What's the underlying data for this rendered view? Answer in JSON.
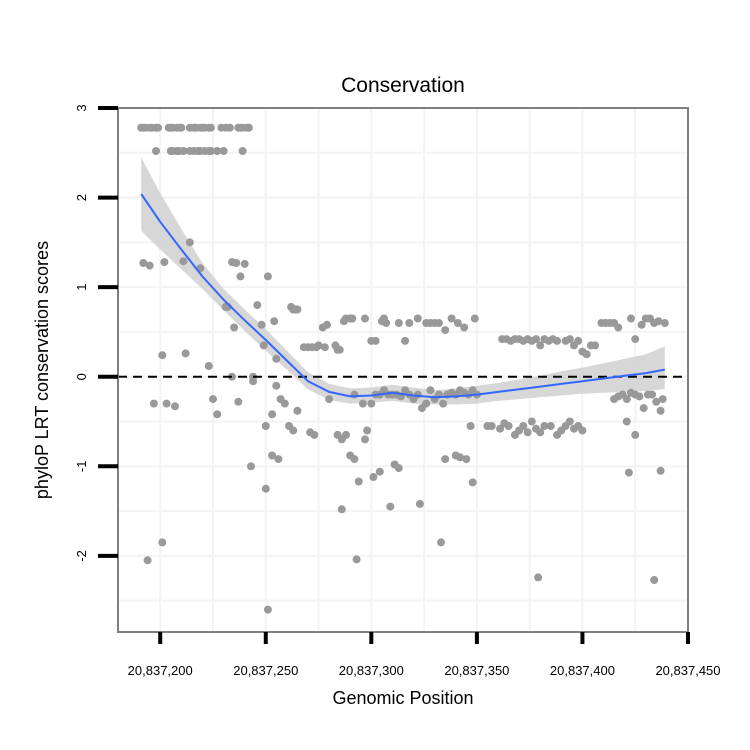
{
  "chart_data": {
    "type": "scatter",
    "title": "Conservation",
    "xlabel": "Genomic Position",
    "ylabel": "phyloP LRT conservation scores",
    "xlim": [
      20837180,
      20837450
    ],
    "ylim": [
      -2.85,
      3.0
    ],
    "xticks": [
      20837200,
      20837250,
      20837300,
      20837350,
      20837400,
      20837450
    ],
    "xtick_labels": [
      "20,837,200",
      "20,837,250",
      "20,837,300",
      "20,837,350",
      "20,837,400",
      "20,837,450"
    ],
    "yticks": [
      -2,
      -1,
      0,
      1,
      2,
      3
    ],
    "ytick_labels": [
      "-2",
      "-1",
      "0",
      "1",
      "2",
      "3"
    ],
    "reference_line": {
      "y": 0,
      "style": "dashed"
    },
    "grid": true,
    "colors": {
      "points": "#999999",
      "smooth": "#3366ff",
      "ribbon": "#d3d3d3",
      "frame": "#7f7f7f"
    },
    "series": [
      {
        "name": "scores",
        "points": [
          [
            20837191,
            2.78
          ],
          [
            20837192,
            2.78
          ],
          [
            20837193,
            2.78
          ],
          [
            20837195,
            2.78
          ],
          [
            20837196,
            2.78
          ],
          [
            20837198,
            2.78
          ],
          [
            20837199,
            2.78
          ],
          [
            20837204,
            2.78
          ],
          [
            20837205,
            2.78
          ],
          [
            20837206,
            2.78
          ],
          [
            20837208,
            2.78
          ],
          [
            20837209,
            2.78
          ],
          [
            20837210,
            2.78
          ],
          [
            20837214,
            2.78
          ],
          [
            20837216,
            2.78
          ],
          [
            20837217,
            2.78
          ],
          [
            20837219,
            2.78
          ],
          [
            20837220,
            2.78
          ],
          [
            20837221,
            2.78
          ],
          [
            20837223,
            2.78
          ],
          [
            20837224,
            2.78
          ],
          [
            20837229,
            2.78
          ],
          [
            20837231,
            2.78
          ],
          [
            20837233,
            2.78
          ],
          [
            20837237,
            2.78
          ],
          [
            20837238,
            2.78
          ],
          [
            20837239,
            2.78
          ],
          [
            20837241,
            2.78
          ],
          [
            20837242,
            2.78
          ],
          [
            20837198,
            2.52
          ],
          [
            20837205,
            2.52
          ],
          [
            20837206,
            2.52
          ],
          [
            20837208,
            2.52
          ],
          [
            20837209,
            2.52
          ],
          [
            20837211,
            2.52
          ],
          [
            20837214,
            2.52
          ],
          [
            20837216,
            2.52
          ],
          [
            20837218,
            2.52
          ],
          [
            20837219,
            2.52
          ],
          [
            20837221,
            2.52
          ],
          [
            20837223,
            2.52
          ],
          [
            20837224,
            2.52
          ],
          [
            20837227,
            2.52
          ],
          [
            20837230,
            2.52
          ],
          [
            20837239,
            2.52
          ],
          [
            20837192,
            1.27
          ],
          [
            20837195,
            1.24
          ],
          [
            20837202,
            1.28
          ],
          [
            20837211,
            1.29
          ],
          [
            20837214,
            1.5
          ],
          [
            20837219,
            1.21
          ],
          [
            20837234,
            1.28
          ],
          [
            20837236,
            1.27
          ],
          [
            20837240,
            1.26
          ],
          [
            20837231,
            0.78
          ],
          [
            20837232,
            0.78
          ],
          [
            20837238,
            1.12
          ],
          [
            20837251,
            1.12
          ],
          [
            20837246,
            0.8
          ],
          [
            20837248,
            0.58
          ],
          [
            20837262,
            0.78
          ],
          [
            20837231,
            0.78
          ],
          [
            20837235,
            0.55
          ],
          [
            20837254,
            0.62
          ],
          [
            20837263,
            0.75
          ],
          [
            20837264,
            0.75
          ],
          [
            20837265,
            0.75
          ],
          [
            20837201,
            0.24
          ],
          [
            20837212,
            0.26
          ],
          [
            20837223,
            0.12
          ],
          [
            20837234,
            0.0
          ],
          [
            20837244,
            0.0
          ],
          [
            20837249,
            0.35
          ],
          [
            20837255,
            0.2
          ],
          [
            20837197,
            -0.3
          ],
          [
            20837203,
            -0.3
          ],
          [
            20837207,
            -0.33
          ],
          [
            20837225,
            -0.25
          ],
          [
            20837227,
            -0.42
          ],
          [
            20837237,
            -0.28
          ],
          [
            20837244,
            -0.05
          ],
          [
            20837250,
            -0.55
          ],
          [
            20837253,
            -0.42
          ],
          [
            20837255,
            -0.1
          ],
          [
            20837257,
            -0.25
          ],
          [
            20837259,
            -0.3
          ],
          [
            20837261,
            -0.55
          ],
          [
            20837263,
            -0.6
          ],
          [
            20837265,
            -0.38
          ],
          [
            20837243,
            -1.0
          ],
          [
            20837250,
            -1.25
          ],
          [
            20837253,
            -0.88
          ],
          [
            20837256,
            -0.92
          ],
          [
            20837251,
            -2.6
          ],
          [
            20837194,
            -2.05
          ],
          [
            20837201,
            -1.85
          ],
          [
            20837268,
            0.33
          ],
          [
            20837270,
            0.33
          ],
          [
            20837272,
            0.33
          ],
          [
            20837274,
            0.33
          ],
          [
            20837275,
            0.35
          ],
          [
            20837278,
            0.33
          ],
          [
            20837277,
            0.55
          ],
          [
            20837279,
            0.58
          ],
          [
            20837283,
            0.35
          ],
          [
            20837284,
            0.3
          ],
          [
            20837285,
            0.3
          ],
          [
            20837287,
            0.62
          ],
          [
            20837288,
            0.65
          ],
          [
            20837290,
            0.65
          ],
          [
            20837291,
            0.65
          ],
          [
            20837297,
            0.65
          ],
          [
            20837300,
            0.4
          ],
          [
            20837302,
            0.4
          ],
          [
            20837305,
            0.62
          ],
          [
            20837306,
            0.65
          ],
          [
            20837307,
            0.6
          ],
          [
            20837313,
            0.6
          ],
          [
            20837316,
            0.4
          ],
          [
            20837318,
            0.6
          ],
          [
            20837322,
            0.65
          ],
          [
            20837326,
            0.6
          ],
          [
            20837328,
            0.6
          ],
          [
            20837330,
            0.6
          ],
          [
            20837332,
            0.6
          ],
          [
            20837335,
            0.52
          ],
          [
            20837338,
            0.65
          ],
          [
            20837341,
            0.6
          ],
          [
            20837344,
            0.55
          ],
          [
            20837349,
            0.65
          ],
          [
            20837271,
            -0.62
          ],
          [
            20837273,
            -0.65
          ],
          [
            20837280,
            -0.25
          ],
          [
            20837284,
            -0.65
          ],
          [
            20837286,
            -0.7
          ],
          [
            20837288,
            -0.65
          ],
          [
            20837290,
            -0.88
          ],
          [
            20837292,
            -0.92
          ],
          [
            20837294,
            -1.17
          ],
          [
            20837297,
            -0.7
          ],
          [
            20837298,
            -0.6
          ],
          [
            20837301,
            -1.12
          ],
          [
            20837304,
            -1.06
          ],
          [
            20837309,
            -1.45
          ],
          [
            20837311,
            -0.98
          ],
          [
            20837313,
            -1.02
          ],
          [
            20837323,
            -1.42
          ],
          [
            20837286,
            -1.48
          ],
          [
            20837293,
            -2.04
          ],
          [
            20837333,
            -1.85
          ],
          [
            20837292,
            -0.2
          ],
          [
            20837296,
            -0.3
          ],
          [
            20837300,
            -0.3
          ],
          [
            20837302,
            -0.2
          ],
          [
            20837304,
            -0.2
          ],
          [
            20837306,
            -0.15
          ],
          [
            20837308,
            -0.2
          ],
          [
            20837310,
            -0.2
          ],
          [
            20837312,
            -0.2
          ],
          [
            20837314,
            -0.22
          ],
          [
            20837316,
            -0.15
          ],
          [
            20837318,
            -0.2
          ],
          [
            20837320,
            -0.25
          ],
          [
            20837322,
            -0.2
          ],
          [
            20837324,
            -0.35
          ],
          [
            20837326,
            -0.3
          ],
          [
            20837328,
            -0.15
          ],
          [
            20837330,
            -0.25
          ],
          [
            20837332,
            -0.2
          ],
          [
            20837334,
            -0.3
          ],
          [
            20837336,
            -0.2
          ],
          [
            20837338,
            -0.18
          ],
          [
            20837340,
            -0.2
          ],
          [
            20837342,
            -0.15
          ],
          [
            20837344,
            -0.18
          ],
          [
            20837346,
            -0.2
          ],
          [
            20837348,
            -0.15
          ],
          [
            20837350,
            -0.2
          ],
          [
            20837335,
            -0.92
          ],
          [
            20837340,
            -0.88
          ],
          [
            20837342,
            -0.9
          ],
          [
            20837345,
            -0.92
          ],
          [
            20837348,
            -1.18
          ],
          [
            20837347,
            -0.55
          ],
          [
            20837362,
            0.42
          ],
          [
            20837364,
            0.42
          ],
          [
            20837366,
            0.4
          ],
          [
            20837368,
            0.42
          ],
          [
            20837370,
            0.42
          ],
          [
            20837372,
            0.4
          ],
          [
            20837374,
            0.42
          ],
          [
            20837376,
            0.4
          ],
          [
            20837378,
            0.42
          ],
          [
            20837380,
            0.35
          ],
          [
            20837382,
            0.42
          ],
          [
            20837384,
            0.4
          ],
          [
            20837386,
            0.42
          ],
          [
            20837388,
            0.4
          ],
          [
            20837392,
            0.4
          ],
          [
            20837394,
            0.42
          ],
          [
            20837396,
            0.35
          ],
          [
            20837398,
            0.4
          ],
          [
            20837400,
            0.28
          ],
          [
            20837402,
            0.25
          ],
          [
            20837404,
            0.35
          ],
          [
            20837406,
            0.35
          ],
          [
            20837355,
            -0.55
          ],
          [
            20837357,
            -0.55
          ],
          [
            20837361,
            -0.58
          ],
          [
            20837363,
            -0.52
          ],
          [
            20837365,
            -0.55
          ],
          [
            20837368,
            -0.65
          ],
          [
            20837370,
            -0.6
          ],
          [
            20837372,
            -0.55
          ],
          [
            20837374,
            -0.62
          ],
          [
            20837376,
            -0.5
          ],
          [
            20837378,
            -0.58
          ],
          [
            20837380,
            -0.62
          ],
          [
            20837382,
            -0.55
          ],
          [
            20837385,
            -0.55
          ],
          [
            20837388,
            -0.65
          ],
          [
            20837390,
            -0.6
          ],
          [
            20837392,
            -0.55
          ],
          [
            20837394,
            -0.5
          ],
          [
            20837396,
            -0.58
          ],
          [
            20837398,
            -0.55
          ],
          [
            20837400,
            -0.6
          ],
          [
            20837379,
            -2.24
          ],
          [
            20837415,
            -0.25
          ],
          [
            20837417,
            -0.22
          ],
          [
            20837419,
            -0.2
          ],
          [
            20837421,
            -0.25
          ],
          [
            20837423,
            -0.18
          ],
          [
            20837425,
            -0.2
          ],
          [
            20837427,
            -0.22
          ],
          [
            20837429,
            -0.35
          ],
          [
            20837431,
            -0.2
          ],
          [
            20837433,
            -0.2
          ],
          [
            20837435,
            -0.28
          ],
          [
            20837437,
            -0.38
          ],
          [
            20837409,
            0.6
          ],
          [
            20837411,
            0.6
          ],
          [
            20837413,
            0.6
          ],
          [
            20837415,
            0.6
          ],
          [
            20837417,
            0.55
          ],
          [
            20837423,
            0.65
          ],
          [
            20837428,
            0.58
          ],
          [
            20837432,
            0.65
          ],
          [
            20837434,
            0.6
          ],
          [
            20837436,
            0.62
          ],
          [
            20837439,
            0.6
          ],
          [
            20837425,
            0.42
          ],
          [
            20837430,
            0.65
          ],
          [
            20837421,
            -0.5
          ],
          [
            20837425,
            -0.65
          ],
          [
            20837422,
            -1.07
          ],
          [
            20837437,
            -1.05
          ],
          [
            20837434,
            -2.27
          ],
          [
            20837438,
            -0.25
          ]
        ]
      }
    ],
    "smooth": {
      "x": [
        20837191,
        20837200,
        20837210,
        20837220,
        20837230,
        20837240,
        20837250,
        20837260,
        20837270,
        20837280,
        20837290,
        20837300,
        20837310,
        20837320,
        20837330,
        20837340,
        20837350,
        20837360,
        20837370,
        20837380,
        20837390,
        20837400,
        20837410,
        20837420,
        20837430,
        20837439
      ],
      "y": [
        2.04,
        1.73,
        1.42,
        1.12,
        0.86,
        0.63,
        0.41,
        0.18,
        -0.05,
        -0.17,
        -0.22,
        -0.21,
        -0.18,
        -0.21,
        -0.23,
        -0.22,
        -0.2,
        -0.17,
        -0.14,
        -0.11,
        -0.08,
        -0.05,
        -0.02,
        0.01,
        0.04,
        0.08
      ],
      "lower": [
        1.63,
        1.42,
        1.2,
        0.98,
        0.74,
        0.51,
        0.29,
        0.08,
        -0.14,
        -0.26,
        -0.3,
        -0.29,
        -0.27,
        -0.3,
        -0.31,
        -0.31,
        -0.3,
        -0.27,
        -0.25,
        -0.23,
        -0.21,
        -0.19,
        -0.18,
        -0.17,
        -0.16,
        -0.14
      ],
      "upper": [
        2.45,
        2.05,
        1.65,
        1.27,
        0.98,
        0.75,
        0.53,
        0.29,
        0.05,
        -0.08,
        -0.13,
        -0.12,
        -0.09,
        -0.12,
        -0.15,
        -0.13,
        -0.1,
        -0.07,
        -0.03,
        0.01,
        0.06,
        0.1,
        0.15,
        0.2,
        0.25,
        0.34
      ]
    }
  }
}
